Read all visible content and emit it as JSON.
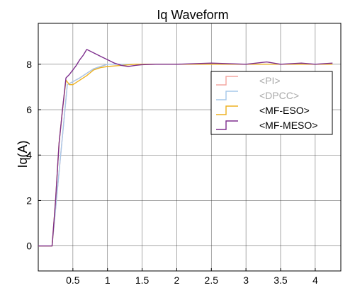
{
  "chart_data": {
    "type": "line",
    "title": "Iq Waveform",
    "xlabel": "",
    "ylabel": "Iq(A)",
    "xlim": [
      0,
      4.37
    ],
    "ylim": [
      -1.1,
      9.8
    ],
    "x_ticks": [
      0.5,
      1,
      1.5,
      2,
      2.5,
      3,
      3.5,
      4
    ],
    "x_tick_labels": [
      "0.5",
      "1",
      "1.5",
      "2",
      "2.5",
      "3",
      "3.5",
      "4"
    ],
    "y_ticks": [
      0,
      2,
      4,
      6,
      8
    ],
    "y_tick_labels": [
      "0",
      "2",
      "4",
      "6",
      "8"
    ],
    "grid": true,
    "legend_position": "right",
    "series": [
      {
        "name": "<PI>",
        "color": "#f4a6a0",
        "legend_active": false,
        "x": [
          0.0,
          0.2,
          0.42,
          0.6,
          0.8,
          1.0,
          1.5,
          2.0,
          2.5,
          3.0,
          3.5,
          4.25
        ],
        "y": [
          0.0,
          0.0,
          7.1,
          7.4,
          7.8,
          8.0,
          8.0,
          8.0,
          8.0,
          8.0,
          8.0,
          8.0
        ]
      },
      {
        "name": "<DPCC>",
        "color": "#a6c8ea",
        "legend_active": false,
        "x": [
          0.0,
          0.2,
          0.42,
          0.6,
          0.8,
          1.0,
          1.5,
          2.0,
          2.5,
          3.0,
          3.5,
          4.25
        ],
        "y": [
          0.0,
          0.0,
          7.1,
          7.4,
          7.8,
          8.0,
          8.0,
          8.0,
          8.0,
          8.0,
          8.0,
          8.0
        ]
      },
      {
        "name": "<MF-ESO>",
        "color": "#edb120",
        "legend_active": true,
        "x": [
          0.0,
          0.2,
          0.25,
          0.3,
          0.35,
          0.4,
          0.45,
          0.5,
          0.6,
          0.7,
          0.8,
          0.9,
          1.0,
          1.2,
          1.4,
          1.6,
          1.8,
          2.0,
          2.5,
          3.0,
          3.5,
          4.0,
          4.25
        ],
        "y": [
          0.0,
          0.0,
          2.0,
          4.5,
          6.0,
          7.3,
          7.1,
          7.1,
          7.3,
          7.5,
          7.75,
          7.85,
          7.9,
          7.95,
          8.0,
          8.0,
          8.0,
          8.0,
          8.0,
          8.0,
          8.0,
          8.0,
          8.0
        ]
      },
      {
        "name": "<MF-MESO>",
        "color": "#7e2f8e",
        "legend_active": true,
        "x": [
          0.0,
          0.2,
          0.25,
          0.3,
          0.35,
          0.4,
          0.45,
          0.5,
          0.55,
          0.6,
          0.65,
          0.7,
          0.8,
          0.9,
          1.0,
          1.1,
          1.2,
          1.3,
          1.4,
          1.5,
          1.7,
          2.0,
          2.5,
          3.0,
          3.3,
          3.5,
          3.8,
          4.0,
          4.25
        ],
        "y": [
          0.0,
          0.0,
          2.0,
          4.5,
          6.0,
          7.4,
          7.55,
          7.75,
          7.95,
          8.2,
          8.4,
          8.65,
          8.5,
          8.35,
          8.2,
          8.05,
          7.95,
          7.9,
          7.95,
          7.98,
          8.0,
          8.0,
          8.05,
          8.0,
          8.1,
          8.0,
          8.05,
          8.0,
          8.05
        ]
      }
    ]
  }
}
